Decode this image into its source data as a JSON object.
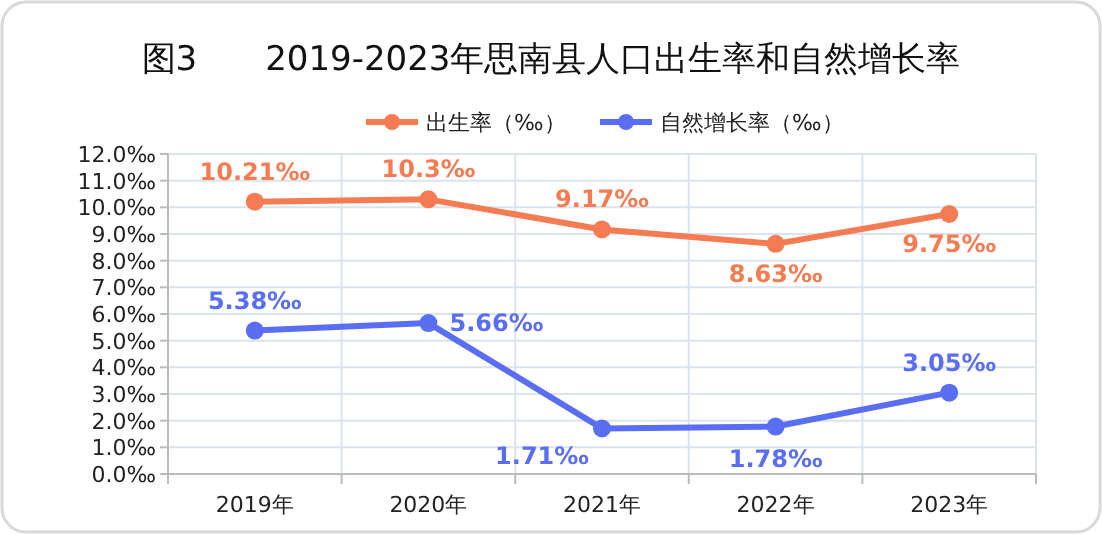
{
  "chart_data": {
    "type": "line",
    "title": "图3　　2019-2023年思南县人口出生率和自然增长率",
    "categories": [
      "2019年",
      "2020年",
      "2021年",
      "2022年",
      "2023年"
    ],
    "series": [
      {
        "name": "出生率（‰）",
        "color": "#f47b52",
        "values": [
          10.21,
          10.3,
          9.17,
          8.63,
          9.75
        ],
        "value_labels": [
          "10.21‰",
          "10.3‰",
          "9.17‰",
          "8.63‰",
          "9.75‰"
        ]
      },
      {
        "name": "自然增长率（‰）",
        "color": "#5a6ef2",
        "values": [
          5.38,
          5.66,
          1.71,
          1.78,
          3.05
        ],
        "value_labels": [
          "5.38‰",
          "5.66‰",
          "1.71‰",
          "1.78‰",
          "3.05‰"
        ]
      }
    ],
    "ylim": [
      0,
      12
    ],
    "yticks": [
      {
        "value": 0,
        "label": "0.0‰"
      },
      {
        "value": 1,
        "label": "1.0‰"
      },
      {
        "value": 2,
        "label": "2.0‰"
      },
      {
        "value": 3,
        "label": "3.0‰"
      },
      {
        "value": 4,
        "label": "4.0‰"
      },
      {
        "value": 5,
        "label": "5.0‰"
      },
      {
        "value": 6,
        "label": "6.0‰"
      },
      {
        "value": 7,
        "label": "7.0‰"
      },
      {
        "value": 8,
        "label": "8.0‰"
      },
      {
        "value": 9,
        "label": "9.0‰"
      },
      {
        "value": 10,
        "label": "10.0‰"
      },
      {
        "value": 11,
        "label": "11.0‰"
      },
      {
        "value": 12,
        "label": "12.0‰"
      }
    ],
    "grid": true,
    "legend": "top",
    "marker": "circle",
    "line_style": "solid"
  }
}
